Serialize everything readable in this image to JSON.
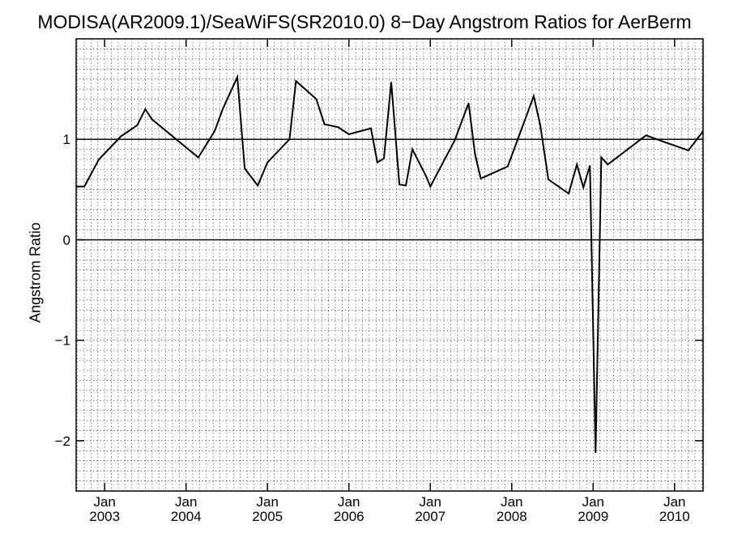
{
  "chart_data": {
    "type": "line",
    "title": "MODISA(AR2009.1)/SeaWiFS(SR2010.0) 8−Day Angstrom Ratios for AerBerm",
    "xlabel": "",
    "ylabel": "Angstrom Ratio",
    "xlim": [
      2002.65,
      2010.35
    ],
    "ylim": [
      -2.5,
      2.0
    ],
    "yticks": [
      {
        "value": 1,
        "label": "1"
      },
      {
        "value": 0,
        "label": "0"
      },
      {
        "value": -1,
        "label": "−1"
      },
      {
        "value": -2,
        "label": "−2"
      }
    ],
    "xticks": [
      {
        "value": 2003.0,
        "month": "Jan",
        "year": "2003"
      },
      {
        "value": 2004.0,
        "month": "Jan",
        "year": "2004"
      },
      {
        "value": 2005.0,
        "month": "Jan",
        "year": "2005"
      },
      {
        "value": 2006.0,
        "month": "Jan",
        "year": "2006"
      },
      {
        "value": 2007.0,
        "month": "Jan",
        "year": "2007"
      },
      {
        "value": 2008.0,
        "month": "Jan",
        "year": "2008"
      },
      {
        "value": 2009.0,
        "month": "Jan",
        "year": "2009"
      },
      {
        "value": 2010.0,
        "month": "Jan",
        "year": "2010"
      }
    ],
    "reference_lines": [
      1,
      0
    ],
    "grid": true,
    "series": [
      {
        "color": "#000000",
        "points": [
          [
            2002.65,
            0.53
          ],
          [
            2002.75,
            0.53
          ],
          [
            2002.93,
            0.8
          ],
          [
            2003.2,
            1.03
          ],
          [
            2003.4,
            1.14
          ],
          [
            2003.5,
            1.3
          ],
          [
            2003.58,
            1.2
          ],
          [
            2004.15,
            0.82
          ],
          [
            2004.35,
            1.08
          ],
          [
            2004.45,
            1.3
          ],
          [
            2004.63,
            1.62
          ],
          [
            2004.72,
            0.71
          ],
          [
            2004.88,
            0.54
          ],
          [
            2005.0,
            0.77
          ],
          [
            2005.27,
            1.0
          ],
          [
            2005.35,
            1.58
          ],
          [
            2005.6,
            1.4
          ],
          [
            2005.7,
            1.15
          ],
          [
            2005.87,
            1.12
          ],
          [
            2006.0,
            1.05
          ],
          [
            2006.27,
            1.11
          ],
          [
            2006.35,
            0.77
          ],
          [
            2006.43,
            0.81
          ],
          [
            2006.52,
            1.57
          ],
          [
            2006.62,
            0.55
          ],
          [
            2006.7,
            0.54
          ],
          [
            2006.78,
            0.9
          ],
          [
            2006.95,
            0.63
          ],
          [
            2007.0,
            0.53
          ],
          [
            2007.3,
            0.99
          ],
          [
            2007.47,
            1.36
          ],
          [
            2007.55,
            0.85
          ],
          [
            2007.62,
            0.61
          ],
          [
            2007.95,
            0.73
          ],
          [
            2008.27,
            1.43
          ],
          [
            2008.35,
            1.14
          ],
          [
            2008.45,
            0.6
          ],
          [
            2008.7,
            0.46
          ],
          [
            2008.8,
            0.75
          ],
          [
            2008.88,
            0.52
          ],
          [
            2008.96,
            0.74
          ],
          [
            2009.03,
            -2.12
          ],
          [
            2009.1,
            0.82
          ],
          [
            2009.18,
            0.75
          ],
          [
            2009.65,
            1.04
          ],
          [
            2009.85,
            0.98
          ],
          [
            2010.17,
            0.89
          ],
          [
            2010.35,
            1.08
          ]
        ]
      }
    ]
  }
}
